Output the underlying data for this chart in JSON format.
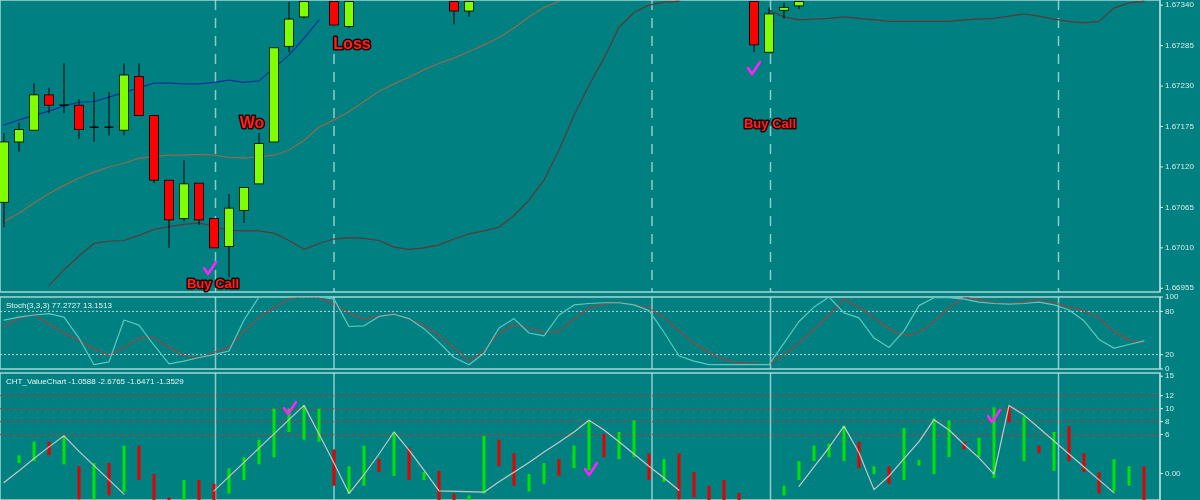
{
  "chart_data": [
    {
      "type": "candlestick",
      "tick_labels": "y",
      "grid": "x",
      "ylim": [
        1.6695,
        1.67347
      ],
      "yticks": [
        {
          "value": 1.66955,
          "label": "1.66955"
        },
        {
          "value": 1.6701,
          "label": "1.67010"
        },
        {
          "value": 1.67065,
          "label": "1.67065"
        },
        {
          "value": 1.6712,
          "label": "1.67120"
        },
        {
          "value": 1.67175,
          "label": "1.67175"
        },
        {
          "value": 1.6723,
          "label": "1.67230"
        },
        {
          "value": 1.67285,
          "label": "1.67285"
        },
        {
          "value": 1.6734,
          "label": "1.67340"
        }
      ],
      "categories": [
        null,
        null,
        null,
        null,
        null,
        null,
        null,
        null,
        null,
        null,
        null,
        null,
        null,
        null,
        null,
        null,
        null,
        null,
        null,
        null,
        null,
        null,
        null,
        null,
        null,
        null,
        null,
        null,
        null,
        null,
        null,
        null,
        null,
        null,
        null,
        null,
        null,
        null,
        null,
        null,
        null,
        null,
        null,
        null,
        null,
        null,
        null,
        null,
        null,
        null,
        null,
        null,
        null,
        null,
        null,
        null,
        null,
        null,
        null,
        null,
        null,
        null,
        null,
        null,
        null,
        null,
        null,
        null,
        null,
        null,
        null,
        null,
        null,
        null,
        null,
        null,
        null,
        null
      ],
      "ohlc": [
        [
          1.67072,
          1.67166,
          1.67038,
          1.67154
        ],
        [
          1.67154,
          1.6718,
          1.67141,
          1.67171
        ],
        [
          1.6717,
          1.67234,
          1.6717,
          1.67218
        ],
        [
          1.67218,
          1.67228,
          1.67193,
          1.67204
        ],
        [
          1.67204,
          1.67261,
          1.67193,
          1.67204
        ],
        [
          1.67204,
          1.67212,
          1.67158,
          1.67171
        ],
        [
          1.67174,
          1.67222,
          1.67154,
          1.67174
        ],
        [
          1.67174,
          1.67222,
          1.67163,
          1.67174
        ],
        [
          1.6717,
          1.67261,
          1.67163,
          1.67245
        ],
        [
          1.67243,
          1.67261,
          1.6719,
          1.6719
        ],
        [
          1.6719,
          1.6719,
          1.67098,
          1.67102
        ],
        [
          1.67102,
          1.67102,
          1.6701,
          1.67048
        ],
        [
          1.6705,
          1.67129,
          1.67046,
          1.67097
        ],
        [
          1.67098,
          1.67098,
          1.67041,
          1.67048
        ],
        [
          1.6705,
          1.6705,
          1.6701,
          1.6701
        ],
        [
          1.67012,
          1.67083,
          1.6697,
          1.67064
        ],
        [
          1.67061,
          1.67092,
          1.67044,
          1.67092
        ],
        [
          1.67097,
          1.67166,
          1.67097,
          1.67152
        ],
        [
          1.67154,
          1.67282,
          1.67154,
          1.67282
        ],
        [
          1.67284,
          1.67344,
          1.67276,
          1.67321
        ],
        [
          1.67324,
          1.67345,
          1.67322,
          1.67345
        ],
        null,
        [
          1.67345,
          1.67345,
          1.67309,
          1.67313
        ],
        [
          1.67311,
          1.67345,
          1.67309,
          1.67345
        ],
        null,
        null,
        null,
        null,
        null,
        null,
        [
          1.67345,
          1.67345,
          1.67314,
          1.67332
        ],
        [
          1.67332,
          1.67345,
          1.67324,
          1.67345
        ],
        null,
        null,
        null,
        null,
        null,
        null,
        null,
        null,
        null,
        null,
        null,
        null,
        null,
        null,
        null,
        null,
        null,
        null,
        [
          1.67345,
          1.67345,
          1.67276,
          1.67286
        ],
        [
          1.67276,
          1.67337,
          1.67276,
          1.67328
        ],
        [
          1.67333,
          1.67343,
          1.67322,
          1.67337
        ],
        [
          1.67339,
          1.67345,
          1.67335,
          1.67345
        ],
        null,
        null,
        null,
        null,
        null,
        null,
        null,
        null,
        null,
        null,
        null,
        null,
        null,
        null,
        null,
        null,
        null,
        null,
        null,
        null,
        null,
        null,
        null,
        null
      ],
      "series": [
        {
          "type": "line",
          "color": "#8c6c50",
          "values": [
            1.67046,
            1.67057,
            1.67071,
            1.67084,
            1.67095,
            1.67105,
            1.67113,
            1.6712,
            1.67125,
            1.67132,
            null,
            1.67136,
            1.67136,
            1.67137,
            1.67136,
            1.67133,
            1.67132,
            null,
            1.67136,
            1.67143,
            1.67156,
            1.67174,
            1.67184,
            1.67195,
            1.67209,
            1.67223,
            1.67233,
            1.67242,
            1.67252,
            1.67261,
            1.67268,
            1.67277,
            1.67286,
            1.67296,
            1.67309,
            1.67324,
            1.67337,
            1.67345,
            null,
            null,
            null,
            null,
            null,
            null,
            null,
            null,
            null,
            null,
            null,
            null,
            null,
            null,
            null,
            null,
            null,
            null,
            null,
            null,
            null,
            null,
            null,
            null,
            null,
            null,
            null,
            null,
            null,
            null,
            null,
            null,
            null,
            null,
            null,
            null,
            null,
            null,
            null,
            null
          ]
        },
        {
          "type": "line",
          "color": "#5c3838",
          "values": [
            null,
            null,
            null,
            1.66959,
            1.6698,
            1.66999,
            1.67016,
            1.67019,
            1.6702,
            1.67027,
            1.67035,
            1.67039,
            1.67042,
            1.67044,
            null,
            1.67034,
            1.67033,
            1.67033,
            1.6703,
            1.6702,
            1.67008,
            1.67016,
            1.67022,
            1.67024,
            1.67023,
            1.6702,
            1.67011,
            1.67008,
            1.6701,
            1.67014,
            1.67022,
            1.67029,
            1.67033,
            1.67038,
            1.67054,
            1.67075,
            1.67102,
            1.67143,
            1.6719,
            1.67231,
            1.67268,
            1.6731,
            1.6733,
            1.6734,
            1.67344,
            1.67345,
            null,
            null,
            null,
            null,
            null,
            1.67333,
            1.67324,
            1.6732,
            1.67321,
            1.67322,
            1.67324,
            1.67322,
            1.6732,
            1.67318,
            1.67318,
            1.67318,
            1.67318,
            1.67318,
            1.6732,
            1.67321,
            1.67322,
            1.67325,
            1.67328,
            1.67325,
            1.67321,
            1.67318,
            1.67316,
            1.67318,
            1.67336,
            1.67343,
            1.67345,
            null
          ]
        },
        {
          "type": "line",
          "color": "#1030a0",
          "values": [
            1.67177,
            1.67184,
            null,
            1.67196,
            1.67203,
            1.67208,
            1.67209,
            1.67215,
            null,
            null,
            1.67234,
            1.67234,
            1.67233,
            1.67233,
            1.67235,
            1.67238,
            1.67235,
            1.67237,
            null,
            1.67272,
            1.67295,
            1.6732,
            null,
            null,
            null,
            null,
            null,
            null,
            null,
            null,
            null,
            null,
            null,
            null,
            null,
            null,
            null,
            null,
            null,
            null,
            null,
            null,
            null,
            null,
            null,
            null,
            null,
            null,
            null,
            null,
            null,
            null,
            null,
            null,
            null,
            null,
            null,
            null,
            null,
            null,
            null,
            null,
            null,
            null,
            null,
            null,
            null,
            null,
            null,
            null,
            null,
            null,
            null,
            null,
            null,
            null,
            null,
            null
          ]
        }
      ],
      "annotations": [
        "Buy Call",
        "Wo",
        "Loss",
        "Buy Call"
      ]
    },
    {
      "type": "line",
      "title": "Stoch(3,3,3) 77.2727 13.1513",
      "tick_labels": "y",
      "grid": "x",
      "ylim": [
        0,
        100
      ],
      "yticks": [
        0,
        20,
        80,
        100
      ],
      "categories": [
        null,
        null,
        null,
        null,
        null,
        null,
        null,
        null,
        null,
        null,
        null,
        null,
        null,
        null,
        null,
        null,
        null,
        null,
        null,
        null,
        null,
        null,
        null,
        null,
        null,
        null,
        null,
        null,
        null,
        null,
        null,
        null,
        null,
        null,
        null,
        null,
        null,
        null,
        null,
        null,
        null,
        null,
        null,
        null,
        null,
        null,
        null,
        null,
        null,
        null,
        null,
        null,
        null,
        null,
        null,
        null,
        null,
        null,
        null,
        null,
        null,
        null,
        null,
        null,
        null,
        null,
        null,
        null,
        null,
        null,
        null,
        null,
        null,
        null,
        null,
        null,
        null,
        null
      ],
      "ref_lines": [
        {
          "axis": "y",
          "value": 20,
          "color": "#b8d8d8",
          "line_style": "dotted"
        },
        {
          "axis": "y",
          "value": 80,
          "color": "#b8d8d8",
          "line_style": "dotted"
        }
      ],
      "series": [
        {
          "color": "#d03030",
          "line_style": "dotted",
          "values": [
            59,
            70,
            76,
            62,
            50,
            40,
            28,
            19,
            30,
            43,
            44,
            30,
            19,
            15,
            23,
            30,
            52,
            72,
            85,
            98,
            100,
            99,
            90,
            78,
            69,
            74,
            77,
            69,
            61,
            47,
            29,
            11,
            25,
            50,
            61,
            57,
            51,
            52,
            69,
            85,
            90,
            92,
            89,
            85,
            71,
            53,
            36,
            23,
            13,
            8,
            7,
            6,
            20,
            36,
            55,
            75,
            97,
            86,
            71,
            56,
            46,
            51,
            66,
            85,
            100,
            96,
            92,
            91,
            93,
            96,
            92,
            86,
            81,
            71,
            52,
            40,
            36,
            null
          ]
        },
        {
          "color": "#5cc8c0",
          "values": [
            68,
            72,
            75,
            77,
            72,
            43,
            6,
            10,
            68,
            61,
            33,
            7,
            11,
            16,
            20,
            25,
            68,
            100,
            100,
            100,
            100,
            100,
            97,
            59,
            60,
            73,
            76,
            70,
            56,
            37,
            16,
            6,
            22,
            57,
            70,
            50,
            46,
            75,
            89,
            91,
            92,
            92,
            89,
            81,
            51,
            18,
            11,
            6,
            6,
            6,
            6,
            6,
            36,
            66,
            86,
            100,
            78,
            71,
            43,
            30,
            53,
            88,
            99,
            99,
            97,
            93,
            91,
            90,
            91,
            93,
            89,
            82,
            67,
            41,
            29,
            34,
            39,
            null
          ]
        }
      ]
    },
    {
      "type": "bar",
      "title": "CHT_ValueChart -1.0588 -2.6765 -1.6471 -1.3529",
      "tick_labels": "y",
      "grid": "x",
      "ylim": [
        -4.1,
        15.5
      ],
      "yticks": [
        {
          "value": 0,
          "label": "0.00"
        },
        6,
        8,
        10,
        12,
        15
      ],
      "categories": [
        null,
        null,
        null,
        null,
        null,
        null,
        null,
        null,
        null,
        null,
        null,
        null,
        null,
        null,
        null,
        null,
        null,
        null,
        null,
        null,
        null,
        null,
        null,
        null,
        null,
        null,
        null,
        null,
        null,
        null,
        null,
        null,
        null,
        null,
        null,
        null,
        null,
        null,
        null,
        null,
        null,
        null,
        null,
        null,
        null,
        null,
        null,
        null,
        null,
        null,
        null,
        null,
        null,
        null,
        null,
        null,
        null,
        null,
        null,
        null,
        null,
        null,
        null,
        null,
        null,
        null,
        null,
        null,
        null,
        null,
        null,
        null,
        null,
        null,
        null,
        null,
        null,
        null
      ],
      "ref_lines": [
        {
          "axis": "y",
          "value": 6,
          "color": "#c83030",
          "line_style": "dotted"
        },
        {
          "axis": "y",
          "value": 8,
          "color": "#c83030",
          "line_style": "dotted"
        },
        {
          "axis": "y",
          "value": 10,
          "color": "#c83030",
          "line_style": "dotted"
        },
        {
          "axis": "y",
          "value": 12,
          "color": "#c83030",
          "line_style": "dotted"
        }
      ],
      "series": [
        {
          "type": "bar",
          "base": [
            null,
            1.6,
            1.9,
            2.8,
            1.4,
            -4.0,
            -4.0,
            -3.4,
            -2.8,
            -1.0,
            -4.1,
            -4.1,
            -4.1,
            -4.1,
            -4.1,
            -3.1,
            -1.0,
            1.4,
            2.5,
            6.4,
            5.2,
            4.9,
            -1.9,
            -3.1,
            -1.9,
            0.2,
            -0.4,
            -1.0,
            -1.0,
            -4.1,
            -4.1,
            -4.1,
            -3.1,
            1.1,
            -1.9,
            -2.8,
            -1.6,
            -0.4,
            0.8,
            0.5,
            2.5,
            2.2,
            2.5,
            -1.0,
            -1.3,
            -4.0,
            -3.7,
            -4.1,
            -4.1,
            -4.1,
            null,
            null,
            -3.4,
            -1.0,
            1.9,
            2.5,
            1.9,
            0.8,
            -0.1,
            -1.6,
            -1.0,
            1.2,
            -0.1,
            2.5,
            3.7,
            2.5,
            -0.7,
            7.9,
            1.9,
            3.1,
            0.4,
            1.9,
            0.2,
            -3.1,
            -2.8,
            -1.9,
            -4.1,
            null
          ],
          "values": [
            null,
            1.2,
            3.0,
            2.1,
            4.4,
            5.1,
            5.6,
            5.0,
            7.1,
            5.3,
            4.0,
            0.4,
            3.1,
            3.1,
            2.5,
            3.9,
            3.5,
            3.8,
            7.5,
            3.6,
            5.3,
            5.1,
            5.6,
            4.2,
            6.2,
            2.0,
            6.8,
            5.0,
            1.2,
            4.5,
            1.0,
            0.7,
            8.9,
            4.1,
            5.0,
            2.7,
            3.2,
            2.6,
            3.5,
            7.7,
            3.6,
            4.2,
            5.7,
            4.1,
            3.5,
            7.1,
            3.9,
            2.2,
            3.1,
            1.1,
            null,
            null,
            1.5,
            2.9,
            2.4,
            2.1,
            5.4,
            4.1,
            1.2,
            2.7,
            8.0,
            0.9,
            8.6,
            5.7,
            1.2,
            3.0,
            10.9,
            2.6,
            6.9,
            1.2,
            6.0,
            5.4,
            2.9,
            3.3,
            5.0,
            3.0,
            5.2,
            null
          ],
          "colors": [
            null,
            "#00e600",
            "#00e600",
            "#e60000",
            "#00e600",
            "#e60000",
            "#00e600",
            "#e60000",
            "#00e600",
            "#e60000",
            "#e60000",
            "#e60000",
            "#00e600",
            "#e60000",
            "#e60000",
            "#00e600",
            "#00e600",
            "#00e600",
            "#00e600",
            "#00e600",
            "#00e600",
            "#00e600",
            "#e60000",
            "#00e600",
            "#00e600",
            "#e60000",
            "#00e600",
            "#e60000",
            "#00e600",
            "#e60000",
            "#e60000",
            "#00e600",
            "#00e600",
            "#e60000",
            "#e60000",
            "#00e600",
            "#00e600",
            "#e60000",
            "#00e600",
            "#00e600",
            "#e60000",
            "#00e600",
            "#00e600",
            "#e60000",
            "#00e600",
            "#e60000",
            "#e60000",
            "#e60000",
            "#e60000",
            "#e60000",
            null,
            null,
            "#00e600",
            "#00e600",
            "#00e600",
            "#00e600",
            "#00e600",
            "#e60000",
            "#00e600",
            "#e60000",
            "#00e600",
            "#00e600",
            "#00e600",
            "#00e600",
            "#e60000",
            "#00e600",
            "#00e600",
            "#e60000",
            "#00e600",
            "#e60000",
            "#00e600",
            "#e60000",
            "#e60000",
            "#e60000",
            "#00e600",
            "#00e600",
            "#e60000",
            null
          ]
        },
        {
          "type": "line",
          "color": "#c8c8c8",
          "values": [
            -1.4,
            0.4,
            2.3,
            4.1,
            5.8,
            3.4,
            1.2,
            -1.0,
            -3.2,
            null,
            null,
            null,
            null,
            null,
            -2.7,
            -0.5,
            1.7,
            3.9,
            6.1,
            8.3,
            10.5,
            6.1,
            1.6,
            -3.1,
            -0.2,
            3.0,
            6.4,
            3.6,
            0.5,
            -2.7,
            null,
            null,
            -2.9,
            -1.3,
            0.2,
            1.7,
            3.3,
            4.8,
            6.4,
            8.2,
            6.7,
            4.9,
            3.0,
            1.1,
            -0.7,
            -2.6,
            null,
            null,
            null,
            null,
            null,
            null,
            null,
            -2.0,
            1.0,
            4.0,
            7.3,
            3.2,
            -2.5,
            -0.4,
            2.3,
            4.9,
            8.3,
            6.7,
            4.5,
            2.4,
            -0.1,
            10.5,
            9.0,
            7.0,
            5.0,
            3.0,
            1.0,
            -1.0,
            -3.0,
            null,
            null,
            null
          ]
        }
      ]
    }
  ]
}
